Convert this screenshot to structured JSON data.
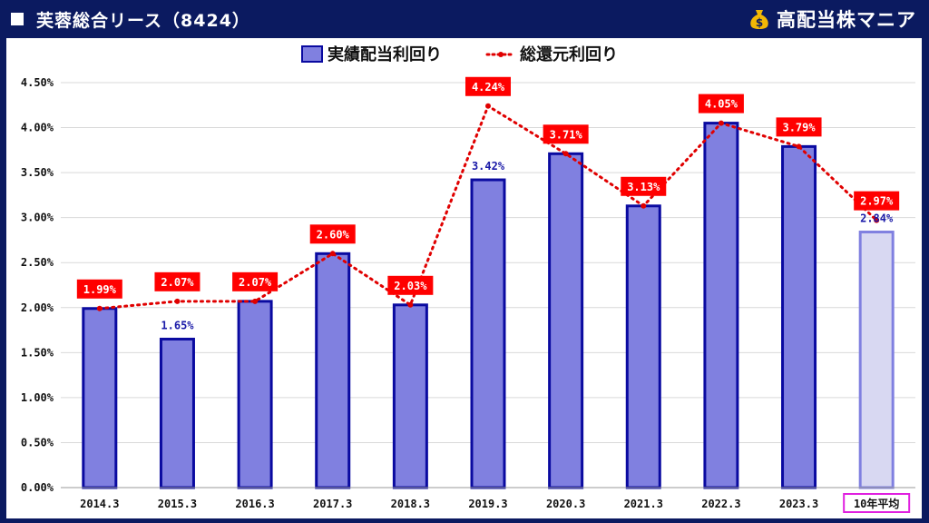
{
  "header": {
    "title": "芙蓉総合リース（8424）",
    "brand": "高配当株マニア",
    "brand_icon": "money-bag-icon"
  },
  "colors": {
    "background": "#0b1a60",
    "bar_fill": "#8080e0",
    "bar_stroke": "#0a0aa0",
    "avg_bar_fill": "#d8d8f2",
    "avg_bar_stroke": "#8080e0",
    "line": "#e00000",
    "label_bg": "#ff0000",
    "avg_label_border": "#e020e0"
  },
  "chart_data": {
    "type": "bar",
    "categories": [
      "2014.3",
      "2015.3",
      "2016.3",
      "2017.3",
      "2018.3",
      "2019.3",
      "2020.3",
      "2021.3",
      "2022.3",
      "2023.3",
      "10年平均"
    ],
    "series": [
      {
        "name": "実績配当利回り",
        "type": "bar",
        "values": [
          1.99,
          1.65,
          2.07,
          2.6,
          2.03,
          3.42,
          3.71,
          3.13,
          4.05,
          3.79,
          2.84
        ],
        "labels": [
          "",
          "1.65%",
          "",
          "",
          "",
          "3.42%",
          "",
          "",
          "",
          "",
          "2.84%"
        ]
      },
      {
        "name": "総還元利回り",
        "type": "line",
        "style": "dotted",
        "values": [
          1.99,
          2.07,
          2.07,
          2.6,
          2.03,
          4.24,
          3.71,
          3.13,
          4.05,
          3.79,
          2.97
        ],
        "labels": [
          "1.99%",
          "2.07%",
          "2.07%",
          "2.60%",
          "2.03%",
          "4.24%",
          "3.71%",
          "3.13%",
          "4.05%",
          "3.79%",
          "2.97%"
        ]
      }
    ],
    "ylim": [
      0,
      4.5
    ],
    "yticks": [
      "0.00%",
      "0.50%",
      "1.00%",
      "1.50%",
      "2.00%",
      "2.50%",
      "3.00%",
      "3.50%",
      "4.00%",
      "4.50%"
    ],
    "ytick_values": [
      0,
      0.5,
      1.0,
      1.5,
      2.0,
      2.5,
      3.0,
      3.5,
      4.0,
      4.5
    ],
    "grid": true,
    "legend_position": "top-center",
    "highlight_last_category": true
  }
}
